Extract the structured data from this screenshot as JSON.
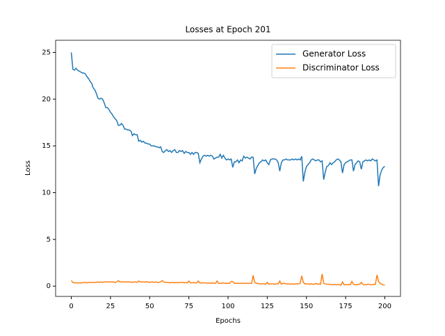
{
  "chart_data": {
    "type": "line",
    "title": "Losses at Epoch 201",
    "x_label": "Epochs",
    "y_label": "Loss",
    "x": [
      0,
      1,
      2,
      3,
      4,
      5,
      6,
      7,
      8,
      9,
      10,
      11,
      12,
      13,
      14,
      15,
      16,
      17,
      18,
      19,
      20,
      21,
      22,
      23,
      24,
      25,
      26,
      27,
      28,
      29,
      30,
      31,
      32,
      33,
      34,
      35,
      36,
      37,
      38,
      39,
      40,
      41,
      42,
      43,
      44,
      45,
      46,
      47,
      48,
      49,
      50,
      51,
      52,
      53,
      54,
      55,
      56,
      57,
      58,
      59,
      60,
      61,
      62,
      63,
      64,
      65,
      66,
      67,
      68,
      69,
      70,
      71,
      72,
      73,
      74,
      75,
      76,
      77,
      78,
      79,
      80,
      81,
      82,
      83,
      84,
      85,
      86,
      87,
      88,
      89,
      90,
      91,
      92,
      93,
      94,
      95,
      96,
      97,
      98,
      99,
      100,
      101,
      102,
      103,
      104,
      105,
      106,
      107,
      108,
      109,
      110,
      111,
      112,
      113,
      114,
      115,
      116,
      117,
      118,
      119,
      120,
      121,
      122,
      123,
      124,
      125,
      126,
      127,
      128,
      129,
      130,
      131,
      132,
      133,
      134,
      135,
      136,
      137,
      138,
      139,
      140,
      141,
      142,
      143,
      144,
      145,
      146,
      147,
      148,
      149,
      150,
      151,
      152,
      153,
      154,
      155,
      156,
      157,
      158,
      159,
      160,
      161,
      162,
      163,
      164,
      165,
      166,
      167,
      168,
      169,
      170,
      171,
      172,
      173,
      174,
      175,
      176,
      177,
      178,
      179,
      180,
      181,
      182,
      183,
      184,
      185,
      186,
      187,
      188,
      189,
      190,
      191,
      192,
      193,
      194,
      195,
      196,
      197,
      198,
      199,
      200
    ],
    "series": [
      {
        "name": "Generator Loss",
        "color": "#1f77b4",
        "values": [
          25.0,
          23.2,
          23.1,
          23.3,
          23.1,
          23.0,
          22.9,
          22.8,
          22.8,
          22.7,
          22.4,
          22.2,
          21.9,
          21.7,
          21.2,
          21.0,
          20.6,
          20.1,
          20.0,
          20.1,
          20.0,
          19.6,
          19.1,
          19.1,
          18.9,
          18.6,
          18.4,
          18.1,
          17.9,
          17.7,
          17.2,
          17.2,
          17.4,
          17.2,
          16.8,
          16.8,
          16.7,
          16.7,
          16.6,
          16.1,
          16.3,
          16.2,
          16.2,
          15.5,
          15.6,
          15.4,
          15.5,
          15.3,
          15.3,
          15.2,
          15.2,
          15.0,
          15.0,
          15.0,
          14.9,
          14.9,
          14.8,
          14.9,
          14.4,
          14.3,
          14.5,
          14.6,
          14.4,
          14.5,
          14.3,
          14.5,
          14.6,
          14.3,
          14.3,
          14.5,
          14.4,
          14.5,
          14.2,
          14.4,
          14.3,
          14.3,
          14.1,
          14.3,
          14.1,
          14.3,
          14.3,
          14.2,
          13.2,
          13.6,
          13.9,
          14.0,
          13.9,
          14.0,
          13.9,
          14.0,
          13.9,
          13.6,
          13.7,
          13.8,
          13.8,
          14.1,
          13.7,
          14.0,
          13.7,
          13.5,
          13.6,
          13.5,
          13.6,
          12.7,
          13.3,
          13.3,
          13.5,
          13.2,
          13.5,
          13.4,
          13.9,
          13.7,
          13.8,
          13.7,
          13.6,
          13.8,
          13.8,
          12.0,
          12.6,
          12.9,
          13.2,
          13.3,
          13.5,
          13.4,
          13.5,
          13.2,
          13.0,
          13.5,
          13.6,
          13.6,
          13.6,
          13.5,
          13.2,
          12.3,
          13.2,
          13.5,
          13.5,
          13.6,
          13.5,
          13.5,
          13.5,
          13.6,
          13.5,
          13.6,
          13.5,
          13.6,
          13.5,
          13.9,
          11.2,
          12.2,
          12.8,
          13.0,
          13.2,
          13.5,
          13.6,
          13.5,
          13.4,
          13.5,
          13.5,
          13.3,
          13.4,
          11.4,
          12.2,
          12.8,
          12.9,
          13.2,
          13.0,
          13.2,
          13.3,
          13.5,
          13.6,
          13.5,
          13.3,
          12.1,
          13.0,
          13.2,
          13.3,
          13.4,
          13.5,
          13.5,
          12.3,
          13.0,
          13.2,
          13.4,
          13.3,
          12.5,
          13.3,
          13.4,
          13.5,
          13.4,
          13.5,
          13.4,
          13.6,
          13.5,
          13.4,
          13.5,
          10.7,
          11.9,
          12.4,
          12.7,
          12.8
        ]
      },
      {
        "name": "Discriminator Loss",
        "color": "#ff7f0e",
        "values": [
          0.6,
          0.4,
          0.35,
          0.35,
          0.35,
          0.35,
          0.35,
          0.35,
          0.4,
          0.4,
          0.35,
          0.4,
          0.4,
          0.4,
          0.4,
          0.4,
          0.4,
          0.45,
          0.4,
          0.45,
          0.4,
          0.45,
          0.45,
          0.45,
          0.45,
          0.45,
          0.45,
          0.45,
          0.4,
          0.45,
          0.6,
          0.45,
          0.45,
          0.45,
          0.45,
          0.45,
          0.45,
          0.45,
          0.45,
          0.4,
          0.45,
          0.45,
          0.4,
          0.55,
          0.45,
          0.45,
          0.45,
          0.45,
          0.45,
          0.45,
          0.4,
          0.45,
          0.45,
          0.4,
          0.45,
          0.4,
          0.4,
          0.45,
          0.6,
          0.45,
          0.4,
          0.4,
          0.4,
          0.35,
          0.4,
          0.4,
          0.35,
          0.4,
          0.35,
          0.4,
          0.4,
          0.4,
          0.35,
          0.4,
          0.35,
          0.55,
          0.35,
          0.35,
          0.4,
          0.35,
          0.35,
          0.55,
          0.35,
          0.35,
          0.35,
          0.35,
          0.35,
          0.3,
          0.35,
          0.3,
          0.35,
          0.3,
          0.3,
          0.55,
          0.3,
          0.3,
          0.3,
          0.35,
          0.3,
          0.3,
          0.3,
          0.3,
          0.5,
          0.5,
          0.3,
          0.3,
          0.3,
          0.3,
          0.3,
          0.3,
          0.3,
          0.3,
          0.3,
          0.3,
          0.3,
          0.3,
          1.15,
          0.4,
          0.3,
          0.3,
          0.25,
          0.25,
          0.25,
          0.25,
          0.2,
          0.4,
          0.2,
          0.25,
          0.25,
          0.25,
          0.2,
          0.25,
          0.25,
          0.55,
          0.2,
          0.3,
          0.3,
          0.25,
          0.25,
          0.25,
          0.2,
          0.25,
          0.2,
          0.25,
          0.25,
          0.25,
          0.3,
          1.1,
          0.4,
          0.25,
          0.25,
          0.25,
          0.2,
          0.25,
          0.2,
          0.2,
          0.3,
          0.2,
          0.25,
          0.2,
          1.3,
          0.3,
          0.25,
          0.2,
          0.2,
          0.2,
          0.15,
          0.15,
          0.2,
          0.15,
          0.2,
          0.15,
          0.1,
          0.45,
          0.15,
          0.15,
          0.15,
          0.2,
          0.15,
          0.5,
          0.2,
          0.15,
          0.15,
          0.2,
          0.2,
          0.4,
          0.2,
          0.15,
          0.15,
          0.2,
          0.2,
          0.15,
          0.15,
          0.2,
          0.2,
          1.2,
          0.5,
          0.3,
          0.2,
          0.15,
          0.1
        ]
      }
    ],
    "xlim": [
      -10,
      210
    ],
    "ylim": [
      -1.1,
      26.3
    ],
    "xticks": [
      0,
      25,
      50,
      75,
      100,
      125,
      150,
      175,
      200
    ],
    "yticks": [
      0,
      5,
      10,
      15,
      20,
      25
    ],
    "legend": "upper right"
  }
}
